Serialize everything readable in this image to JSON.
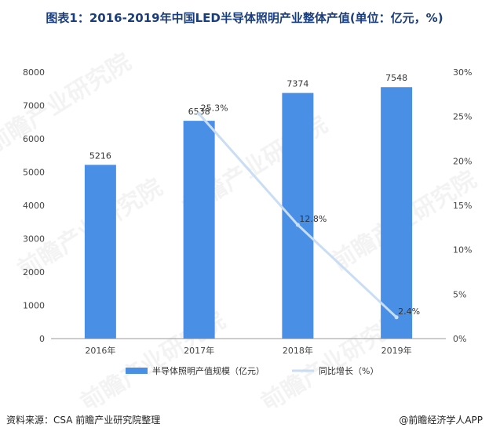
{
  "title": "图表1：2016-2019年中国LED半导体照明产业整体产值(单位：亿元，%)",
  "source": "资料来源：CSA 前瞻产业研究院整理",
  "brand": "@前瞻经济学人APP",
  "watermark": "前瞻产业研究院",
  "colors": {
    "bar": "#4a8fe6",
    "line": "#c9ddf5",
    "axis": "#999999"
  },
  "chart_data": {
    "type": "bar",
    "categories": [
      "2016年",
      "2017年",
      "2018年",
      "2019年"
    ],
    "series": [
      {
        "name": "半导体照明产值规模（亿元）",
        "type": "bar",
        "axis": "left",
        "values": [
          5216,
          6538,
          7374,
          7548
        ],
        "labels": [
          "5216",
          "6538",
          "7374",
          "7548"
        ]
      },
      {
        "name": "同比增长（%）",
        "type": "line",
        "axis": "right",
        "values": [
          null,
          25.3,
          12.8,
          2.4
        ],
        "labels": [
          "",
          "25.3%",
          "12.8%",
          "2.4%"
        ]
      }
    ],
    "y_left": {
      "ylim": [
        0,
        8000
      ],
      "ticks": [
        "0",
        "1000",
        "2000",
        "3000",
        "4000",
        "5000",
        "6000",
        "7000",
        "8000"
      ]
    },
    "y_right": {
      "ylim": [
        0,
        30
      ],
      "ticks": [
        "0%",
        "5%",
        "10%",
        "15%",
        "20%",
        "25%",
        "30%"
      ]
    },
    "legend": "bottom"
  }
}
